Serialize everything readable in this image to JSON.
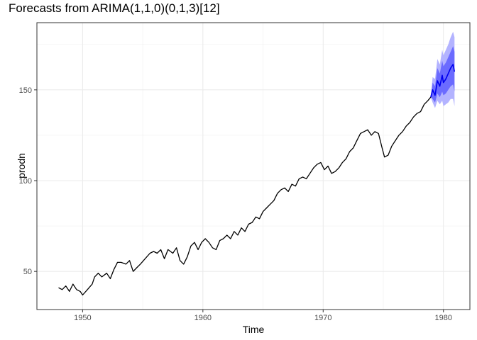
{
  "chart_data": {
    "type": "line",
    "title": "Forecasts from ARIMA(1,1,0)(0,1,3)[12]",
    "xlabel": "Time",
    "ylabel": "prodn",
    "xlim": [
      1946.2,
      1982.2
    ],
    "ylim": [
      29,
      187
    ],
    "x_ticks": [
      1950,
      1960,
      1970,
      1980
    ],
    "y_ticks": [
      50,
      100,
      150
    ],
    "grid": true,
    "legend": "none",
    "series": [
      {
        "kind": "observed",
        "color": "#000000",
        "points": [
          [
            1948.0,
            41
          ],
          [
            1948.3,
            40
          ],
          [
            1948.6,
            42
          ],
          [
            1948.9,
            39
          ],
          [
            1949.2,
            43
          ],
          [
            1949.5,
            40
          ],
          [
            1949.8,
            39
          ],
          [
            1950.0,
            37
          ],
          [
            1950.4,
            40
          ],
          [
            1950.8,
            43
          ],
          [
            1951.0,
            47
          ],
          [
            1951.3,
            49
          ],
          [
            1951.6,
            47
          ],
          [
            1952.0,
            49
          ],
          [
            1952.3,
            46
          ],
          [
            1952.6,
            51
          ],
          [
            1952.9,
            55
          ],
          [
            1953.2,
            55
          ],
          [
            1953.6,
            54
          ],
          [
            1953.9,
            56
          ],
          [
            1954.2,
            50
          ],
          [
            1954.5,
            52
          ],
          [
            1954.8,
            54
          ],
          [
            1955.2,
            57
          ],
          [
            1955.6,
            60
          ],
          [
            1955.9,
            61
          ],
          [
            1956.2,
            60
          ],
          [
            1956.5,
            62
          ],
          [
            1956.8,
            57
          ],
          [
            1957.1,
            62
          ],
          [
            1957.5,
            60
          ],
          [
            1957.8,
            63
          ],
          [
            1958.1,
            56
          ],
          [
            1958.4,
            54
          ],
          [
            1958.7,
            58
          ],
          [
            1959.0,
            64
          ],
          [
            1959.3,
            66
          ],
          [
            1959.6,
            62
          ],
          [
            1959.9,
            66
          ],
          [
            1960.2,
            68
          ],
          [
            1960.5,
            66
          ],
          [
            1960.8,
            63
          ],
          [
            1961.1,
            62
          ],
          [
            1961.4,
            67
          ],
          [
            1961.7,
            68
          ],
          [
            1962.0,
            70
          ],
          [
            1962.3,
            68
          ],
          [
            1962.6,
            72
          ],
          [
            1962.9,
            70
          ],
          [
            1963.2,
            74
          ],
          [
            1963.5,
            72
          ],
          [
            1963.8,
            76
          ],
          [
            1964.1,
            77
          ],
          [
            1964.4,
            80
          ],
          [
            1964.7,
            79
          ],
          [
            1965.0,
            83
          ],
          [
            1965.3,
            85
          ],
          [
            1965.6,
            87
          ],
          [
            1965.9,
            89
          ],
          [
            1966.2,
            93
          ],
          [
            1966.5,
            95
          ],
          [
            1966.8,
            96
          ],
          [
            1967.1,
            94
          ],
          [
            1967.4,
            98
          ],
          [
            1967.7,
            97
          ],
          [
            1968.0,
            101
          ],
          [
            1968.3,
            102
          ],
          [
            1968.6,
            101
          ],
          [
            1968.9,
            104
          ],
          [
            1969.2,
            107
          ],
          [
            1969.5,
            109
          ],
          [
            1969.8,
            110
          ],
          [
            1970.1,
            106
          ],
          [
            1970.4,
            108
          ],
          [
            1970.7,
            104
          ],
          [
            1971.0,
            105
          ],
          [
            1971.3,
            107
          ],
          [
            1971.6,
            110
          ],
          [
            1971.9,
            112
          ],
          [
            1972.2,
            116
          ],
          [
            1972.5,
            118
          ],
          [
            1972.8,
            122
          ],
          [
            1973.1,
            126
          ],
          [
            1973.4,
            127
          ],
          [
            1973.7,
            128
          ],
          [
            1974.0,
            125
          ],
          [
            1974.3,
            127
          ],
          [
            1974.6,
            126
          ],
          [
            1974.9,
            118
          ],
          [
            1975.1,
            113
          ],
          [
            1975.4,
            114
          ],
          [
            1975.7,
            119
          ],
          [
            1976.0,
            122
          ],
          [
            1976.3,
            125
          ],
          [
            1976.6,
            127
          ],
          [
            1976.9,
            130
          ],
          [
            1977.2,
            132
          ],
          [
            1977.5,
            135
          ],
          [
            1977.8,
            137
          ],
          [
            1978.1,
            138
          ],
          [
            1978.4,
            142
          ],
          [
            1978.7,
            144
          ],
          [
            1978.95,
            146
          ]
        ]
      },
      {
        "kind": "forecast",
        "color": "#0000ee",
        "points": [
          [
            1978.95,
            146
          ],
          [
            1979.1,
            150
          ],
          [
            1979.3,
            147
          ],
          [
            1979.5,
            155
          ],
          [
            1979.7,
            152
          ],
          [
            1979.9,
            158
          ],
          [
            1980.0,
            154
          ],
          [
            1980.2,
            156
          ],
          [
            1980.4,
            159
          ],
          [
            1980.6,
            162
          ],
          [
            1980.8,
            164
          ],
          [
            1980.92,
            160
          ]
        ],
        "lo80": [
          146,
          145,
          143,
          148,
          146,
          149,
          147,
          148,
          150,
          152,
          153,
          149
        ],
        "hi80": [
          146,
          154,
          152,
          162,
          159,
          166,
          163,
          165,
          168,
          171,
          174,
          171
        ],
        "lo95": [
          146,
          143,
          140,
          144,
          142,
          144,
          141,
          142,
          143,
          145,
          145,
          141
        ],
        "hi95": [
          146,
          157,
          156,
          167,
          164,
          172,
          169,
          172,
          175,
          179,
          182,
          179
        ]
      }
    ]
  }
}
